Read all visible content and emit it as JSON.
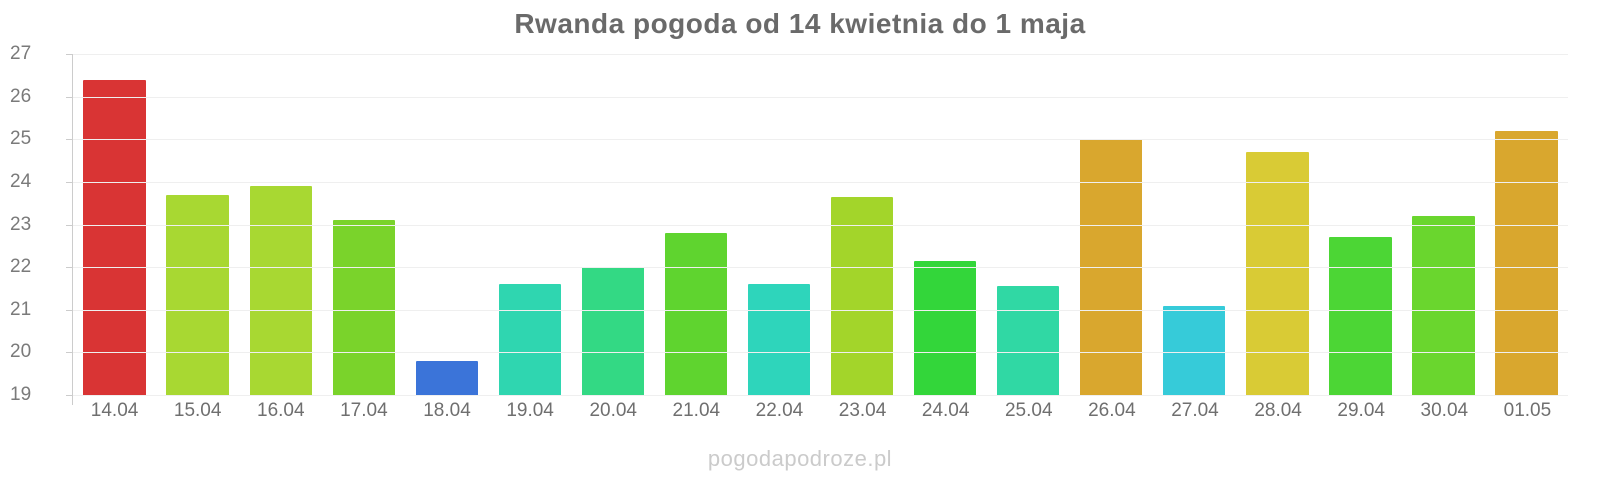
{
  "title": "Rwanda pogoda od 14 kwietnia do 1 maja",
  "watermark": "pogodapodroze.pl",
  "colors": {
    "background": "#ffffff",
    "title_text": "#6a6a6a",
    "axis_text": "#7a7a7a",
    "x_label_text": "#6f6f6f",
    "axis_line": "#cccccc",
    "gridline": "#efefef",
    "watermark_text": "#cbcbcb"
  },
  "chart_data": {
    "type": "bar",
    "title": "Rwanda pogoda od 14 kwietnia do 1 maja",
    "xlabel": "",
    "ylabel": "",
    "ylim": [
      19,
      27
    ],
    "yticks": [
      27,
      26,
      25,
      24,
      23,
      22,
      21,
      20,
      19
    ],
    "grid": true,
    "legend": false,
    "categories": [
      "14.04",
      "15.04",
      "16.04",
      "17.04",
      "18.04",
      "19.04",
      "20.04",
      "21.04",
      "22.04",
      "23.04",
      "24.04",
      "25.04",
      "26.04",
      "27.04",
      "28.04",
      "29.04",
      "30.04",
      "01.05"
    ],
    "values": [
      26.4,
      23.7,
      23.9,
      23.1,
      19.8,
      21.6,
      22.0,
      22.8,
      21.6,
      23.65,
      22.15,
      21.55,
      25.0,
      21.1,
      24.7,
      22.7,
      23.2,
      25.2
    ],
    "bar_colors": [
      "#d93434",
      "#a8d832",
      "#a8d832",
      "#7ad32b",
      "#3b74d9",
      "#2fd6b0",
      "#33d984",
      "#5fd42f",
      "#2ed5bb",
      "#a3d52a",
      "#33d63a",
      "#30d8a4",
      "#d9a72e",
      "#36cbd9",
      "#d9cb35",
      "#4cd635",
      "#6ad62e",
      "#d9a72e"
    ]
  }
}
